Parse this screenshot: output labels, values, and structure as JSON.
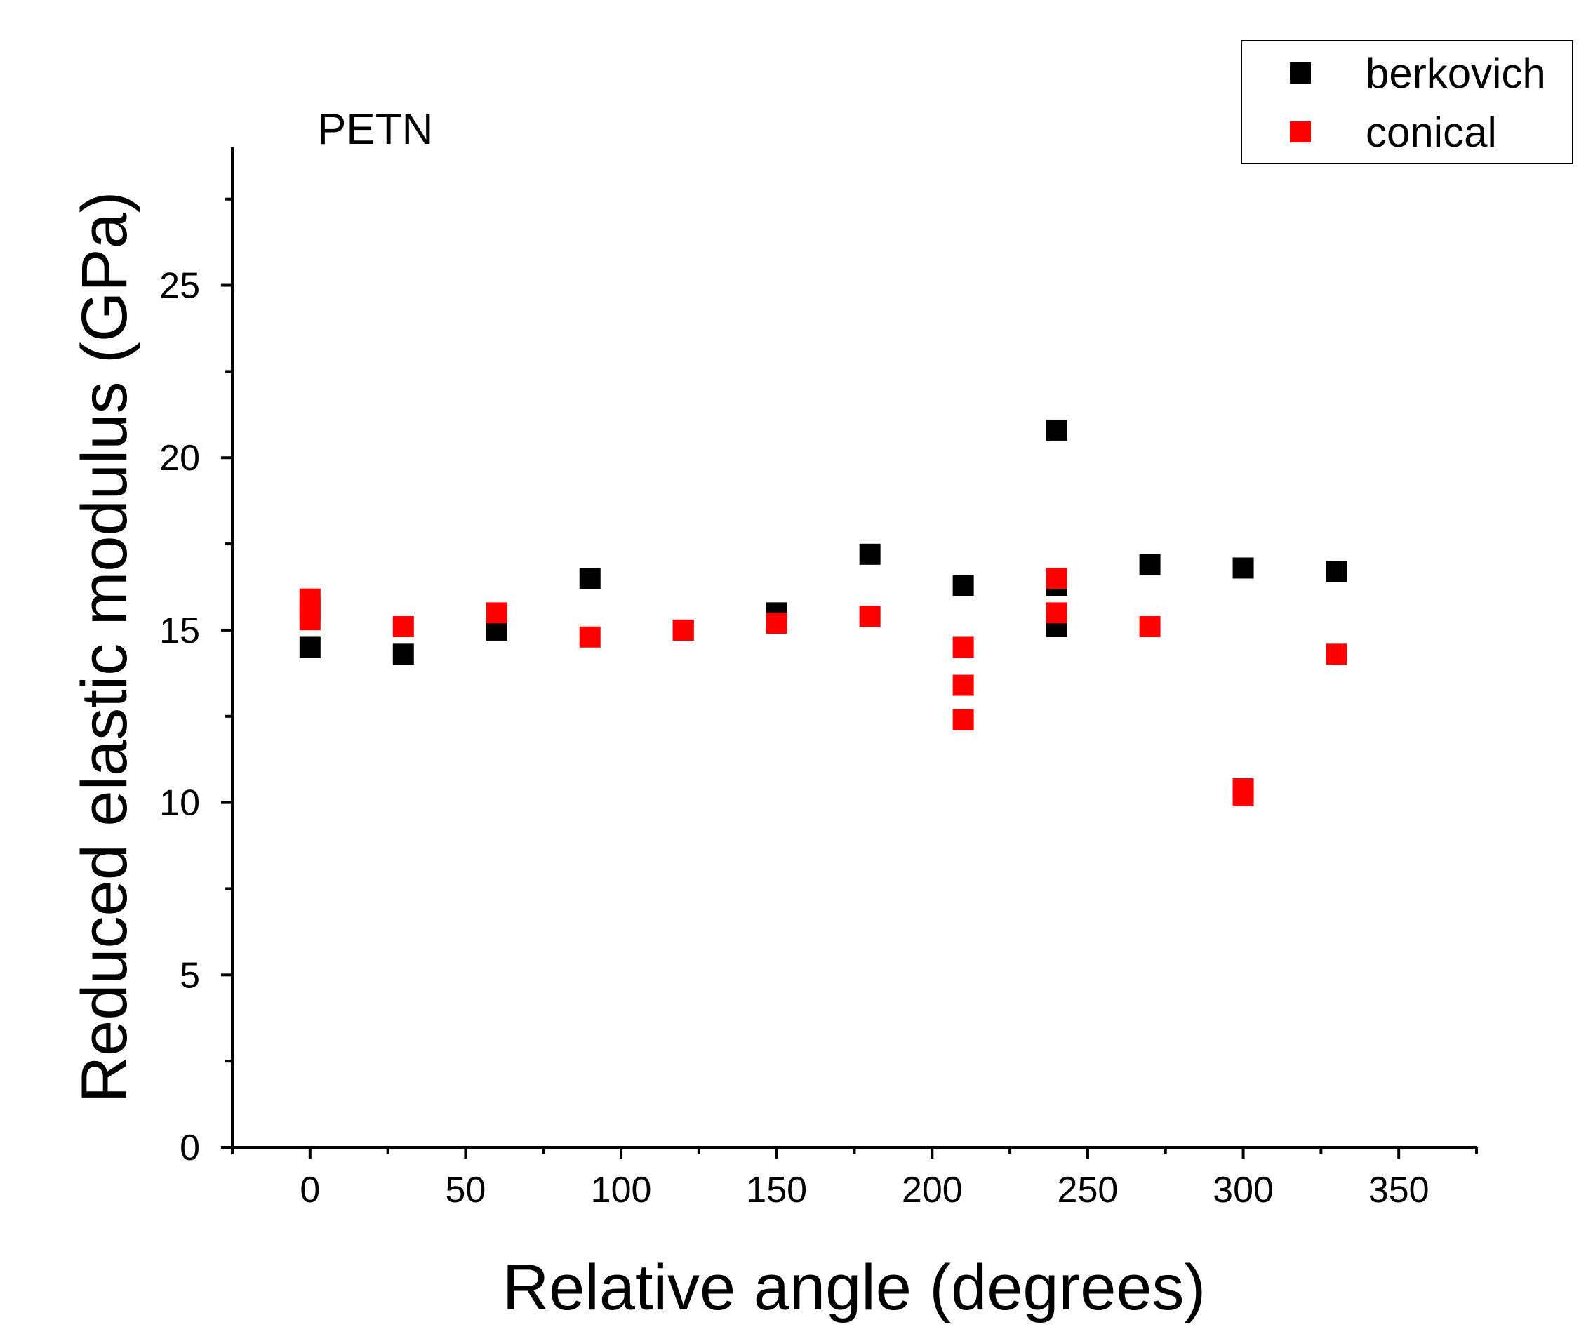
{
  "chart_data": {
    "type": "scatter",
    "annotation": "PETN",
    "xlabel": "Relative angle (degrees)",
    "ylabel": "Reduced elastic modulus (GPa)",
    "xlim": [
      -25,
      375
    ],
    "ylim": [
      0,
      29
    ],
    "xticks": [
      0,
      50,
      100,
      150,
      200,
      250,
      300,
      350
    ],
    "yticks": [
      0,
      5,
      10,
      15,
      20,
      25
    ],
    "legend_position": "top-right",
    "series": [
      {
        "name": "berkovich",
        "color": "#000000",
        "points": [
          [
            0,
            14.5
          ],
          [
            30,
            14.3
          ],
          [
            60,
            15.0
          ],
          [
            90,
            16.5
          ],
          [
            120,
            15.0
          ],
          [
            150,
            15.5
          ],
          [
            180,
            17.2
          ],
          [
            210,
            16.3
          ],
          [
            240,
            20.8
          ],
          [
            240,
            16.3
          ],
          [
            240,
            15.1
          ],
          [
            270,
            16.9
          ],
          [
            300,
            16.8
          ],
          [
            330,
            16.7
          ]
        ]
      },
      {
        "name": "conical",
        "color": "#ff0000",
        "points": [
          [
            0,
            15.9
          ],
          [
            0,
            15.6
          ],
          [
            0,
            15.3
          ],
          [
            30,
            15.1
          ],
          [
            60,
            15.5
          ],
          [
            90,
            14.8
          ],
          [
            120,
            15.0
          ],
          [
            150,
            15.2
          ],
          [
            180,
            15.4
          ],
          [
            210,
            14.5
          ],
          [
            210,
            13.4
          ],
          [
            210,
            12.4
          ],
          [
            240,
            16.5
          ],
          [
            240,
            15.5
          ],
          [
            270,
            15.1
          ],
          [
            300,
            10.4
          ],
          [
            300,
            10.2
          ],
          [
            330,
            14.3
          ]
        ]
      }
    ]
  }
}
